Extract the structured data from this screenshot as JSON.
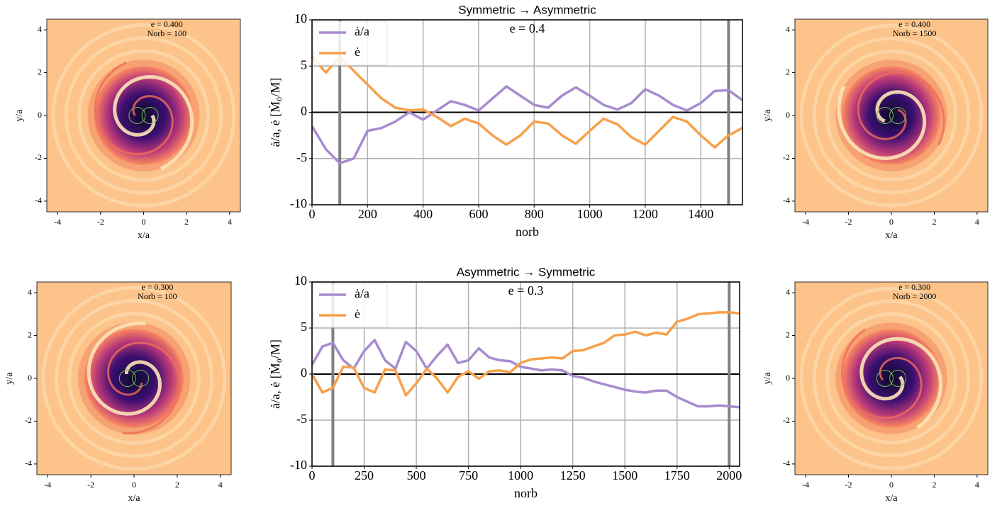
{
  "chart_data": [
    {
      "type": "image",
      "annotations": [
        "e = 0.400",
        "Norb = 100"
      ],
      "xlabel": "x/a",
      "ylabel": "y/a",
      "xlim": [
        -4.5,
        4.5
      ],
      "ylim": [
        -4.5,
        4.5
      ],
      "xticks": [
        -4,
        -2,
        0,
        2,
        4
      ],
      "yticks": [
        -4,
        -2,
        0,
        2,
        4
      ]
    },
    {
      "type": "line",
      "title": "Symmetric → Asymmetric",
      "annotations": [
        "e = 0.4"
      ],
      "xlabel": "norb",
      "ylabel": "ȧ/a, ė [Ṁ₀/M]",
      "xlim": [
        0,
        1550
      ],
      "ylim": [
        -10,
        10
      ],
      "xticks": [
        0,
        200,
        400,
        600,
        800,
        1000,
        1200,
        1400
      ],
      "yticks": [
        -10,
        -5,
        0,
        5,
        10
      ],
      "grid": true,
      "legend": "upper left",
      "hline": 0,
      "vlines": [
        100,
        1500
      ],
      "x": [
        0,
        50,
        100,
        150,
        200,
        250,
        300,
        350,
        400,
        450,
        500,
        550,
        600,
        650,
        700,
        750,
        800,
        850,
        900,
        950,
        1000,
        1050,
        1100,
        1150,
        1200,
        1250,
        1300,
        1350,
        1400,
        1450,
        1500,
        1550
      ],
      "series": [
        {
          "name": "ȧ/a",
          "color": "#a88bcf",
          "values": [
            -1.5,
            -4,
            -5.5,
            -5,
            -2,
            -1.7,
            -1,
            0,
            -0.8,
            0.2,
            1.2,
            0.8,
            0.2,
            1.5,
            2.8,
            1.8,
            0.8,
            0.5,
            1.8,
            2.7,
            1.8,
            0.8,
            0.3,
            1,
            2.5,
            1.8,
            0.8,
            0.2,
            1,
            2.3,
            2.4,
            1.3
          ]
        },
        {
          "name": "ė",
          "color": "#f7a049",
          "values": [
            6,
            4.3,
            6,
            4.5,
            3,
            1.5,
            0.5,
            0.2,
            0.3,
            -0.5,
            -1.5,
            -0.7,
            -1.2,
            -2.5,
            -3.5,
            -2.5,
            -1,
            -1.2,
            -2.5,
            -3.4,
            -2,
            -0.7,
            -1.3,
            -2.7,
            -3.5,
            -2,
            -0.5,
            -1,
            -2.5,
            -3.8,
            -2.5,
            -1.7
          ]
        }
      ]
    },
    {
      "type": "image",
      "annotations": [
        "e = 0.400",
        "Norb = 1500"
      ],
      "xlabel": "x/a",
      "ylabel": "y/a",
      "xlim": [
        -4.5,
        4.5
      ],
      "ylim": [
        -4.5,
        4.5
      ],
      "xticks": [
        -4,
        -2,
        0,
        2,
        4
      ],
      "yticks": [
        -4,
        -2,
        0,
        2,
        4
      ]
    },
    {
      "type": "image",
      "annotations": [
        "e = 0.300",
        "Norb = 100"
      ],
      "xlabel": "x/a",
      "ylabel": "y/a",
      "xlim": [
        -4.5,
        4.5
      ],
      "ylim": [
        -4.5,
        4.5
      ],
      "xticks": [
        -4,
        -2,
        0,
        2,
        4
      ],
      "yticks": [
        -4,
        -2,
        0,
        2,
        4
      ]
    },
    {
      "type": "line",
      "title": "Asymmetric → Symmetric",
      "annotations": [
        "e = 0.3"
      ],
      "xlabel": "norb",
      "ylabel": "ȧ/a, ė [Ṁ₀/M]",
      "xlim": [
        0,
        2050
      ],
      "ylim": [
        -10,
        10
      ],
      "xticks": [
        0,
        250,
        500,
        750,
        1000,
        1250,
        1500,
        1750,
        2000
      ],
      "yticks": [
        -10,
        -5,
        0,
        5,
        10
      ],
      "grid": true,
      "legend": "upper left",
      "hline": 0,
      "vlines": [
        100,
        2000
      ],
      "x": [
        0,
        50,
        100,
        150,
        200,
        250,
        300,
        350,
        400,
        450,
        500,
        550,
        600,
        650,
        700,
        750,
        800,
        850,
        900,
        950,
        1000,
        1050,
        1100,
        1150,
        1200,
        1250,
        1300,
        1350,
        1400,
        1450,
        1500,
        1550,
        1600,
        1650,
        1700,
        1750,
        1800,
        1850,
        1900,
        1950,
        2000,
        2050
      ],
      "series": [
        {
          "name": "ȧ/a",
          "color": "#a88bcf",
          "values": [
            1,
            3,
            3.4,
            1.5,
            0.6,
            2.5,
            3.7,
            1.5,
            0.6,
            3.5,
            2.5,
            0.6,
            2,
            3.2,
            1.2,
            1.5,
            2.8,
            1.8,
            1.5,
            1.4,
            0.8,
            0.6,
            0.4,
            0.5,
            0.4,
            -0.2,
            -0.4,
            -0.8,
            -1.1,
            -1.4,
            -1.7,
            -1.9,
            -2,
            -1.8,
            -1.8,
            -2.5,
            -3,
            -3.5,
            -3.5,
            -3.4,
            -3.5,
            -3.6
          ]
        },
        {
          "name": "ė",
          "color": "#f7a049",
          "values": [
            0,
            -2,
            -1.5,
            0.8,
            0.7,
            -1.5,
            -2,
            0.5,
            0.4,
            -2.3,
            -1,
            0.6,
            -0.5,
            -2,
            -0.3,
            0.3,
            -0.5,
            0.3,
            0.4,
            0.2,
            1.2,
            1.6,
            1.7,
            1.8,
            1.7,
            2.5,
            2.6,
            3,
            3.4,
            4.2,
            4.3,
            4.6,
            4.2,
            4.5,
            4.3,
            5.7,
            6,
            6.5,
            6.6,
            6.7,
            6.7,
            6.6
          ]
        }
      ]
    },
    {
      "type": "image",
      "annotations": [
        "e = 0.300",
        "Norb = 2000"
      ],
      "xlabel": "x/a",
      "ylabel": "y/a",
      "xlim": [
        -4.5,
        4.5
      ],
      "ylim": [
        -4.5,
        4.5
      ],
      "xticks": [
        -4,
        -2,
        0,
        2,
        4
      ],
      "yticks": [
        -4,
        -2,
        0,
        2,
        4
      ]
    }
  ]
}
